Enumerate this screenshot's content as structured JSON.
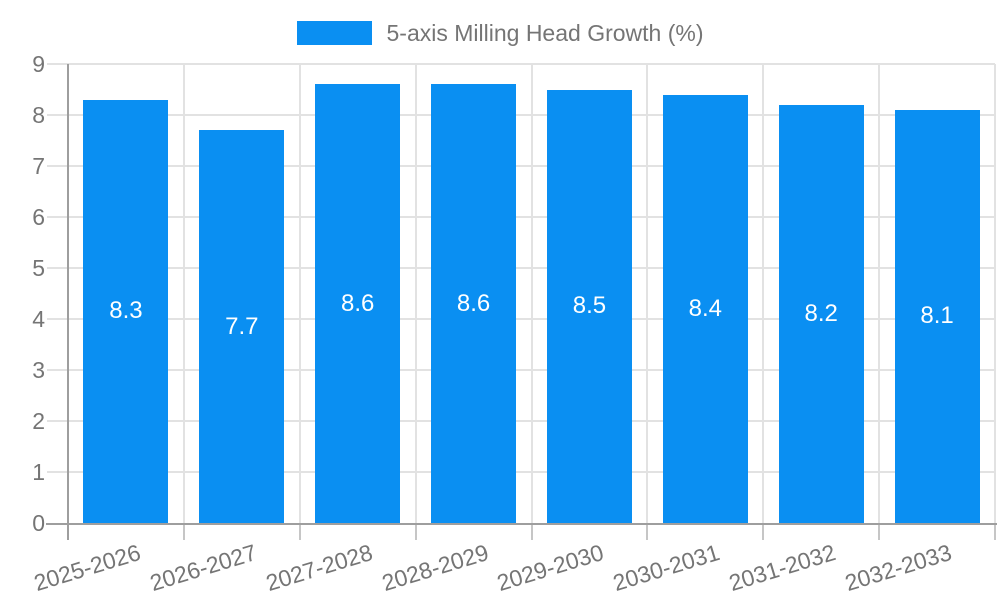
{
  "legend": {
    "label": "5-axis Milling Head Growth (%)",
    "swatch_color": "#0a8ff2",
    "position": "top"
  },
  "chart_data": {
    "type": "bar",
    "title": "5-axis Milling Head Growth (%)",
    "series_name": "5-axis Milling Head Growth (%)",
    "categories": [
      "2025-2026",
      "2026-2027",
      "2027-2028",
      "2028-2029",
      "2029-2030",
      "2030-2031",
      "2031-2032",
      "2032-2033"
    ],
    "values": [
      8.3,
      7.7,
      8.6,
      8.6,
      8.5,
      8.4,
      8.2,
      8.1
    ],
    "value_labels": [
      "8.3",
      "7.7",
      "8.6",
      "8.6",
      "8.5",
      "8.4",
      "8.2",
      "8.1"
    ],
    "xlabel": "",
    "ylabel": "",
    "ylim": [
      0,
      9
    ],
    "yticks": [
      0,
      1,
      2,
      3,
      4,
      5,
      6,
      7,
      8,
      9
    ],
    "grid": true,
    "legend_position": "top",
    "bar_color": "#0a8ff2",
    "bar_label_color": "#ffffff",
    "axis_text_color": "#757575",
    "gridline_color": "#e2e2e2",
    "axis_line_color": "#9e9e9e",
    "tick_mark_color": "#c6c6c6"
  }
}
